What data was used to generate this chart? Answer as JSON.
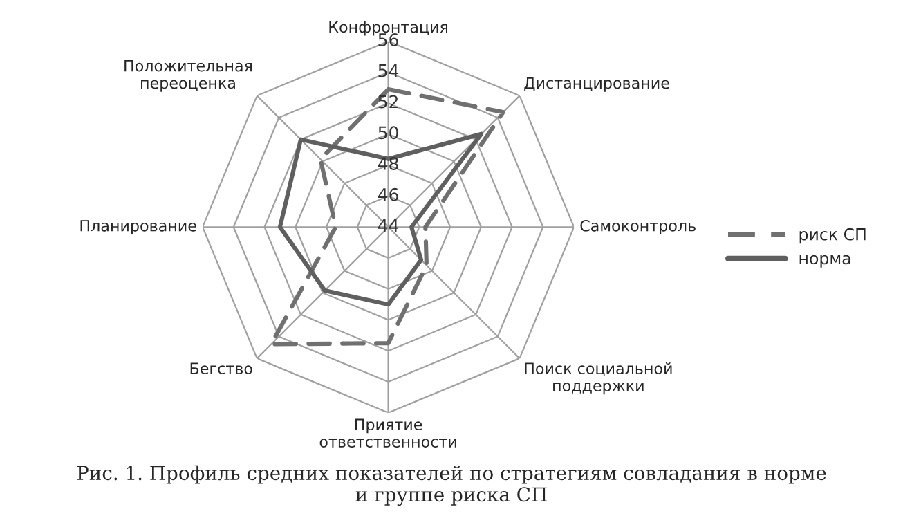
{
  "chart_data": {
    "type": "radar",
    "categories": [
      "Конфронтация",
      "Дистанцирование",
      "Самоконтроль",
      "Поиск социальной\nподдержки",
      "Приятие\nответственности",
      "Бегство",
      "Планирование",
      "Положительная\nпереоценка"
    ],
    "series": [
      {
        "name": "риск СП",
        "color": "#707070",
        "line_style": "dashed",
        "values": [
          52.9,
          54.5,
          46.4,
          47.5,
          51.5,
          54.7,
          47.4,
          50.2
        ]
      },
      {
        "name": "норма",
        "color": "#5f5f5f",
        "line_style": "solid",
        "values": [
          48.4,
          52.5,
          45.5,
          47,
          49,
          49.8,
          51,
          52
        ]
      }
    ],
    "ylim": [
      44,
      56
    ],
    "yticks": [
      44,
      46,
      48,
      50,
      52,
      54,
      56
    ],
    "grid": true,
    "legend": "right",
    "marker": "none",
    "annotations": [
      "Рис. 1. Профиль средних показателей по стратегиям совладания в норме\nи группе риска СП"
    ]
  }
}
